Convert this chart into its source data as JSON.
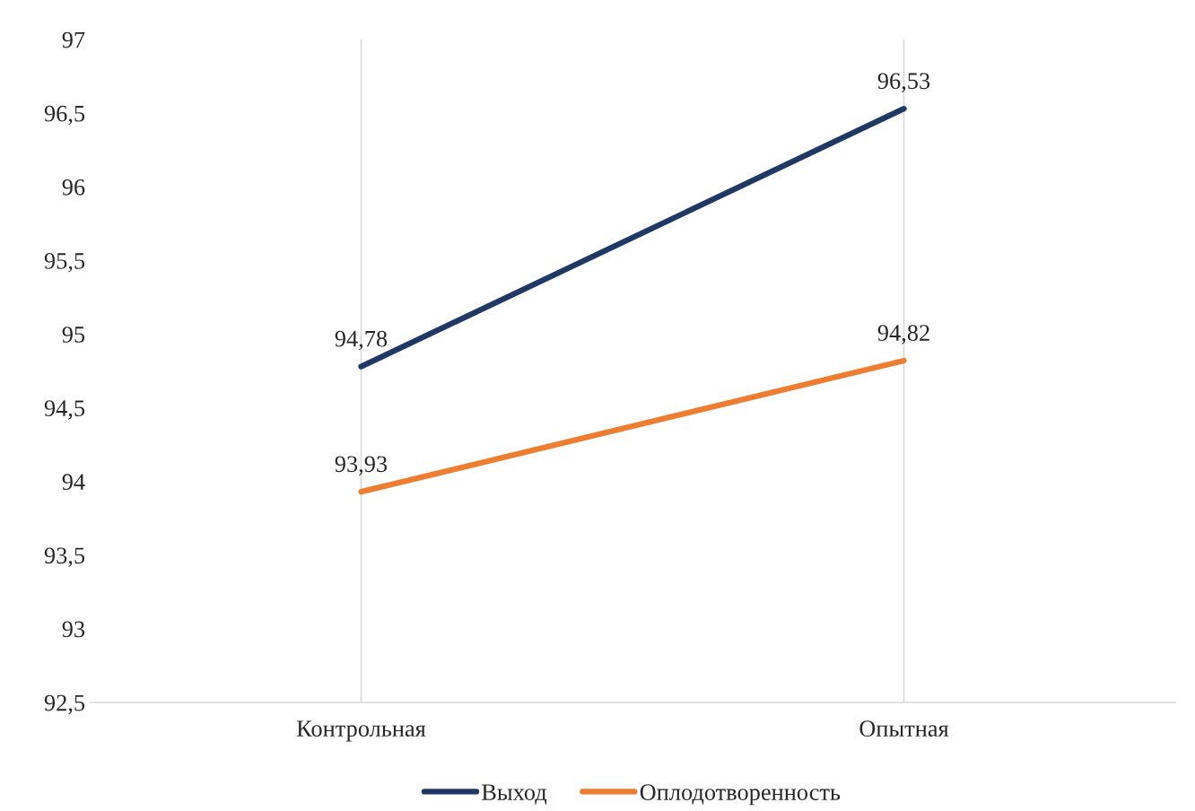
{
  "chart_data": {
    "type": "line",
    "categories": [
      "Контрольная",
      "Опытная"
    ],
    "series": [
      {
        "name": "Выход",
        "color": "#203864",
        "values": [
          94.78,
          96.53
        ]
      },
      {
        "name": "Оплодотворенность",
        "color": "#ed7d31",
        "values": [
          93.93,
          94.82
        ]
      }
    ],
    "value_labels": [
      [
        "94,78",
        "96,53"
      ],
      [
        "93,93",
        "94,82"
      ]
    ],
    "ylim": [
      92.5,
      97
    ],
    "yticks": [
      {
        "value": 92.5,
        "label": "92,5"
      },
      93,
      {
        "value": 93.5,
        "label": "93,5"
      },
      94,
      {
        "value": 94.5,
        "label": "94,5"
      },
      95,
      {
        "value": 95.5,
        "label": "95,5"
      },
      96,
      {
        "value": 96.5,
        "label": "96,5"
      },
      97
    ],
    "grid": "x",
    "legend": "bottom",
    "marker": "none",
    "line_style": "solid"
  }
}
